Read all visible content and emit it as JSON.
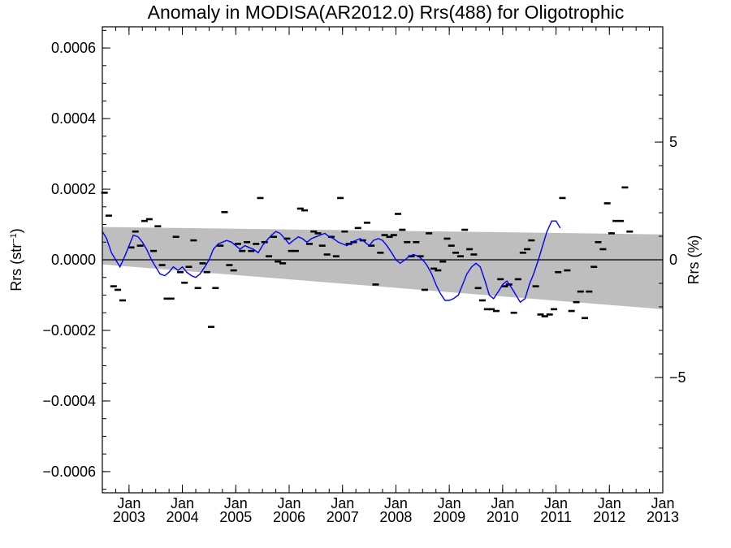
{
  "chart_data": {
    "type": "line",
    "title": "Anomaly in MODISA(AR2012.0) Rrs(488) for Oligotrophic",
    "ylabel_left": {
      "main": "Rrs (str",
      "sup": "−1",
      "tail": ")"
    },
    "ylabel_right": "Rrs (%)",
    "x_range": [
      2002.5,
      2013.0
    ],
    "ylim": [
      -0.00066,
      0.00066
    ],
    "right_ylim": [
      -9.9,
      9.9
    ],
    "grid": false,
    "y_ticks": [
      {
        "value": 0.0006,
        "label": "0.0006"
      },
      {
        "value": 0.0004,
        "label": "0.0004"
      },
      {
        "value": 0.0002,
        "label": "0.0002"
      },
      {
        "value": 0.0,
        "label": "0.0000"
      },
      {
        "value": -0.0002,
        "label": "−0.0002"
      },
      {
        "value": -0.0004,
        "label": "−0.0004"
      },
      {
        "value": -0.0006,
        "label": "−0.0006"
      }
    ],
    "right_ticks": [
      {
        "value": 5,
        "label": "5"
      },
      {
        "value": 0,
        "label": "0"
      },
      {
        "value": -5,
        "label": "−5"
      }
    ],
    "x_ticks": [
      {
        "value": 2003,
        "month": "Jan",
        "year": "2003"
      },
      {
        "value": 2004,
        "month": "Jan",
        "year": "2004"
      },
      {
        "value": 2005,
        "month": "Jan",
        "year": "2005"
      },
      {
        "value": 2006,
        "month": "Jan",
        "year": "2006"
      },
      {
        "value": 2007,
        "month": "Jan",
        "year": "2007"
      },
      {
        "value": 2008,
        "month": "Jan",
        "year": "2008"
      },
      {
        "value": 2009,
        "month": "Jan",
        "year": "2009"
      },
      {
        "value": 2010,
        "month": "Jan",
        "year": "2010"
      },
      {
        "value": 2011,
        "month": "Jan",
        "year": "2011"
      },
      {
        "value": 2012,
        "month": "Jan",
        "year": "2012"
      },
      {
        "value": 2013,
        "month": "Jan",
        "year": "2013"
      }
    ],
    "band": {
      "color": "#bebebe",
      "upper": [
        [
          2002.5,
          9.3e-05
        ],
        [
          2013.0,
          7.2e-05
        ]
      ],
      "lower": [
        [
          2002.5,
          -1.3e-05
        ],
        [
          2013.0,
          -0.00014
        ]
      ]
    },
    "monthly_points": {
      "color": "#000000",
      "values": [
        [
          2002.54,
          0.00019
        ],
        [
          2002.62,
          0.000125
        ],
        [
          2002.71,
          -7.5e-05
        ],
        [
          2002.79,
          -8.5e-05
        ],
        [
          2002.88,
          -0.000115
        ],
        [
          2003.04,
          3.5e-05
        ],
        [
          2003.12,
          8e-05
        ],
        [
          2003.21,
          4e-05
        ],
        [
          2003.29,
          0.00011
        ],
        [
          2003.38,
          0.000115
        ],
        [
          2003.46,
          2.5e-05
        ],
        [
          2003.54,
          9.5e-05
        ],
        [
          2003.62,
          -1.5e-05
        ],
        [
          2003.71,
          -0.00011
        ],
        [
          2003.79,
          -0.00011
        ],
        [
          2003.88,
          6.5e-05
        ],
        [
          2003.96,
          -3.5e-05
        ],
        [
          2004.04,
          -6.5e-05
        ],
        [
          2004.12,
          -2e-05
        ],
        [
          2004.21,
          5.5e-05
        ],
        [
          2004.29,
          -8e-05
        ],
        [
          2004.38,
          -1e-05
        ],
        [
          2004.46,
          -3.5e-05
        ],
        [
          2004.54,
          -0.00019
        ],
        [
          2004.62,
          -8e-05
        ],
        [
          2004.71,
          4e-05
        ],
        [
          2004.79,
          0.000135
        ],
        [
          2004.88,
          -1.5e-05
        ],
        [
          2004.96,
          -3e-05
        ],
        [
          2005.04,
          4.5e-05
        ],
        [
          2005.12,
          2.5e-05
        ],
        [
          2005.21,
          5e-05
        ],
        [
          2005.29,
          2.5e-05
        ],
        [
          2005.38,
          4.5e-05
        ],
        [
          2005.46,
          0.000175
        ],
        [
          2005.54,
          5e-05
        ],
        [
          2005.62,
          1e-05
        ],
        [
          2005.71,
          6.5e-05
        ],
        [
          2005.79,
          -5e-06
        ],
        [
          2005.88,
          -1e-05
        ],
        [
          2005.96,
          6e-05
        ],
        [
          2006.04,
          2.5e-05
        ],
        [
          2006.12,
          2.5e-05
        ],
        [
          2006.21,
          0.000145
        ],
        [
          2006.29,
          0.00014
        ],
        [
          2006.38,
          4.5e-05
        ],
        [
          2006.46,
          8e-05
        ],
        [
          2006.54,
          7.5e-05
        ],
        [
          2006.62,
          4e-05
        ],
        [
          2006.71,
          1.5e-05
        ],
        [
          2006.79,
          6.5e-05
        ],
        [
          2006.88,
          1e-05
        ],
        [
          2006.96,
          0.000175
        ],
        [
          2007.04,
          8e-05
        ],
        [
          2007.12,
          4.5e-05
        ],
        [
          2007.21,
          5e-05
        ],
        [
          2007.29,
          9e-05
        ],
        [
          2007.38,
          5.5e-05
        ],
        [
          2007.46,
          0.000105
        ],
        [
          2007.54,
          4e-05
        ],
        [
          2007.62,
          -7e-05
        ],
        [
          2007.71,
          2e-05
        ],
        [
          2007.79,
          7e-05
        ],
        [
          2007.88,
          6.5e-05
        ],
        [
          2007.96,
          7e-05
        ],
        [
          2008.04,
          0.00013
        ],
        [
          2008.12,
          8.5e-05
        ],
        [
          2008.21,
          5e-05
        ],
        [
          2008.29,
          1e-05
        ],
        [
          2008.38,
          5e-05
        ],
        [
          2008.46,
          1e-05
        ],
        [
          2008.54,
          -8.5e-05
        ],
        [
          2008.62,
          7.5e-05
        ],
        [
          2008.71,
          -2.5e-05
        ],
        [
          2008.79,
          -3e-05
        ],
        [
          2008.88,
          -5e-06
        ],
        [
          2008.96,
          6e-05
        ],
        [
          2009.04,
          4e-05
        ],
        [
          2009.12,
          2e-05
        ],
        [
          2009.21,
          1e-05
        ],
        [
          2009.29,
          8.5e-05
        ],
        [
          2009.38,
          3e-05
        ],
        [
          2009.46,
          1.5e-05
        ],
        [
          2009.54,
          -8e-05
        ],
        [
          2009.62,
          -0.000115
        ],
        [
          2009.71,
          -0.00014
        ],
        [
          2009.79,
          -0.00014
        ],
        [
          2009.88,
          -0.000145
        ],
        [
          2009.96,
          -5.5e-05
        ],
        [
          2010.04,
          -7.5e-05
        ],
        [
          2010.12,
          -7e-05
        ],
        [
          2010.21,
          -0.00015
        ],
        [
          2010.29,
          -5.5e-05
        ],
        [
          2010.38,
          2e-05
        ],
        [
          2010.46,
          3e-05
        ],
        [
          2010.54,
          5.5e-05
        ],
        [
          2010.62,
          -7.5e-05
        ],
        [
          2010.71,
          -0.000155
        ],
        [
          2010.79,
          -0.00016
        ],
        [
          2010.88,
          -0.000155
        ],
        [
          2010.96,
          -0.00014
        ],
        [
          2011.04,
          -3.5e-05
        ],
        [
          2011.12,
          0.000175
        ],
        [
          2011.21,
          -3e-05
        ],
        [
          2011.29,
          -0.000145
        ],
        [
          2011.38,
          -0.00012
        ],
        [
          2011.46,
          -9e-05
        ],
        [
          2011.54,
          -0.000165
        ],
        [
          2011.62,
          -9e-05
        ],
        [
          2011.71,
          -2e-05
        ],
        [
          2011.79,
          5e-05
        ],
        [
          2011.88,
          3e-05
        ],
        [
          2011.96,
          0.00016
        ],
        [
          2012.04,
          7.5e-05
        ],
        [
          2012.12,
          0.00011
        ],
        [
          2012.21,
          0.00011
        ],
        [
          2012.29,
          0.000205
        ],
        [
          2012.38,
          8e-05
        ]
      ]
    },
    "smoothed_series": {
      "color": "#0000ff",
      "values": [
        [
          2002.5,
          8e-05
        ],
        [
          2002.58,
          6e-05
        ],
        [
          2002.67,
          2e-05
        ],
        [
          2002.75,
          0.0
        ],
        [
          2002.83,
          -2e-05
        ],
        [
          2002.92,
          1e-05
        ],
        [
          2003.0,
          4e-05
        ],
        [
          2003.08,
          7e-05
        ],
        [
          2003.17,
          6.5e-05
        ],
        [
          2003.25,
          5e-05
        ],
        [
          2003.33,
          3e-05
        ],
        [
          2003.42,
          0.0
        ],
        [
          2003.5,
          -2e-05
        ],
        [
          2003.58,
          -4e-05
        ],
        [
          2003.67,
          -4.5e-05
        ],
        [
          2003.75,
          -3.5e-05
        ],
        [
          2003.83,
          -2e-05
        ],
        [
          2003.92,
          -3e-05
        ],
        [
          2004.0,
          -2e-05
        ],
        [
          2004.08,
          -3.5e-05
        ],
        [
          2004.17,
          -4.5e-05
        ],
        [
          2004.25,
          -5e-05
        ],
        [
          2004.33,
          -4e-05
        ],
        [
          2004.42,
          -2e-05
        ],
        [
          2004.5,
          0.0
        ],
        [
          2004.58,
          3e-05
        ],
        [
          2004.67,
          4.5e-05
        ],
        [
          2004.75,
          5e-05
        ],
        [
          2004.83,
          5.5e-05
        ],
        [
          2004.92,
          5e-05
        ],
        [
          2005.0,
          4e-05
        ],
        [
          2005.08,
          3e-05
        ],
        [
          2005.17,
          4e-05
        ],
        [
          2005.25,
          3.5e-05
        ],
        [
          2005.33,
          3e-05
        ],
        [
          2005.42,
          2e-05
        ],
        [
          2005.5,
          4e-05
        ],
        [
          2005.58,
          5.5e-05
        ],
        [
          2005.67,
          7e-05
        ],
        [
          2005.75,
          8e-05
        ],
        [
          2005.83,
          7.5e-05
        ],
        [
          2005.92,
          6e-05
        ],
        [
          2006.0,
          4.5e-05
        ],
        [
          2006.08,
          5.5e-05
        ],
        [
          2006.17,
          6.5e-05
        ],
        [
          2006.25,
          6e-05
        ],
        [
          2006.33,
          5e-05
        ],
        [
          2006.42,
          6e-05
        ],
        [
          2006.5,
          6.5e-05
        ],
        [
          2006.58,
          7e-05
        ],
        [
          2006.67,
          7.5e-05
        ],
        [
          2006.75,
          6.5e-05
        ],
        [
          2006.83,
          6e-05
        ],
        [
          2006.92,
          5e-05
        ],
        [
          2007.0,
          4.5e-05
        ],
        [
          2007.08,
          4e-05
        ],
        [
          2007.17,
          5e-05
        ],
        [
          2007.25,
          5.5e-05
        ],
        [
          2007.33,
          6e-05
        ],
        [
          2007.42,
          5e-05
        ],
        [
          2007.5,
          4e-05
        ],
        [
          2007.58,
          5.5e-05
        ],
        [
          2007.67,
          6e-05
        ],
        [
          2007.75,
          5.5e-05
        ],
        [
          2007.83,
          4e-05
        ],
        [
          2007.92,
          2e-05
        ],
        [
          2008.0,
          0.0
        ],
        [
          2008.08,
          -1e-05
        ],
        [
          2008.17,
          0.0
        ],
        [
          2008.25,
          1e-05
        ],
        [
          2008.33,
          1.5e-05
        ],
        [
          2008.42,
          1e-05
        ],
        [
          2008.5,
          0.0
        ],
        [
          2008.58,
          -1.5e-05
        ],
        [
          2008.67,
          -4e-05
        ],
        [
          2008.75,
          -7e-05
        ],
        [
          2008.83,
          -9.5e-05
        ],
        [
          2008.92,
          -0.000115
        ],
        [
          2009.0,
          -0.000115
        ],
        [
          2009.08,
          -0.00011
        ],
        [
          2009.17,
          -0.0001
        ],
        [
          2009.25,
          -7e-05
        ],
        [
          2009.33,
          -4e-05
        ],
        [
          2009.42,
          -2e-05
        ],
        [
          2009.5,
          -1e-05
        ],
        [
          2009.58,
          -2e-05
        ],
        [
          2009.67,
          -6e-05
        ],
        [
          2009.75,
          -0.0001
        ],
        [
          2009.83,
          -0.00011
        ],
        [
          2009.92,
          -9e-05
        ],
        [
          2010.0,
          -7e-05
        ],
        [
          2010.08,
          -6e-05
        ],
        [
          2010.17,
          -8e-05
        ],
        [
          2010.25,
          -0.0001
        ],
        [
          2010.33,
          -0.00012
        ],
        [
          2010.42,
          -0.00011
        ],
        [
          2010.5,
          -7e-05
        ],
        [
          2010.58,
          -4e-05
        ],
        [
          2010.67,
          0.0
        ],
        [
          2010.75,
          4e-05
        ],
        [
          2010.83,
          8e-05
        ],
        [
          2010.92,
          0.00011
        ],
        [
          2011.0,
          0.00011
        ],
        [
          2011.08,
          9e-05
        ]
      ]
    }
  }
}
